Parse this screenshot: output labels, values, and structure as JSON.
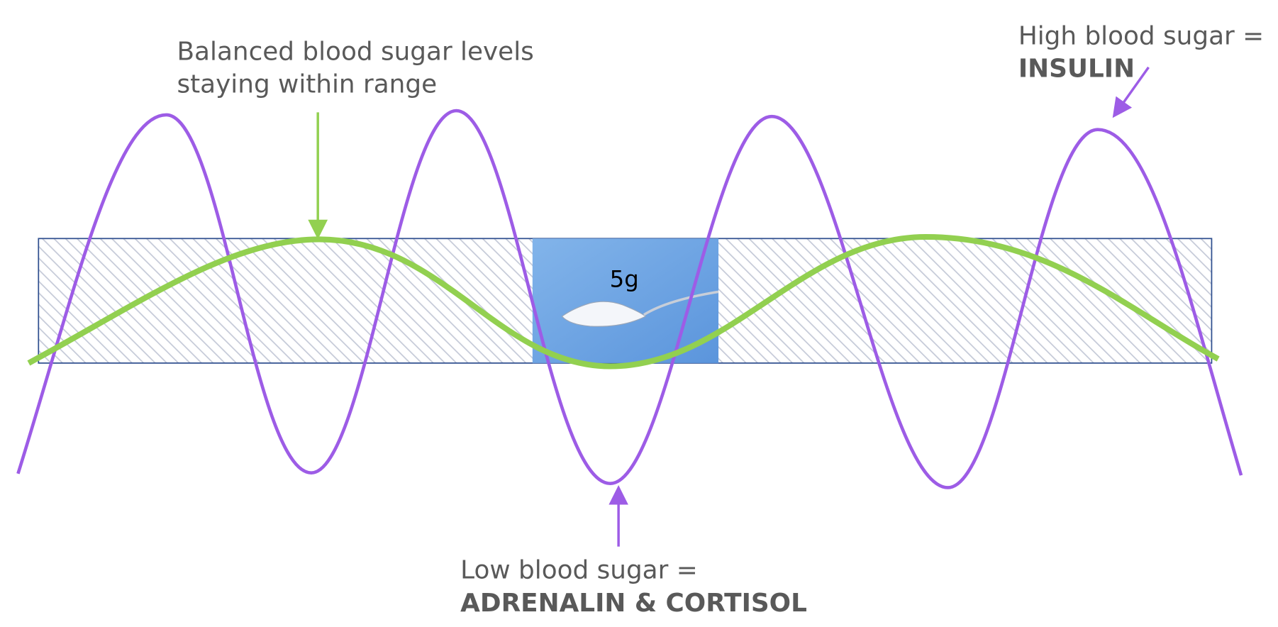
{
  "annotations": {
    "balanced": {
      "line1": "Balanced blood sugar levels",
      "line2": "staying within range"
    },
    "high": {
      "line1": "High blood sugar =",
      "line2": "INSULIN"
    },
    "low": {
      "line1": "Low blood sugar =",
      "line2": "ADRENALIN & CORTISOL"
    }
  },
  "image": {
    "label": "5g"
  }
}
